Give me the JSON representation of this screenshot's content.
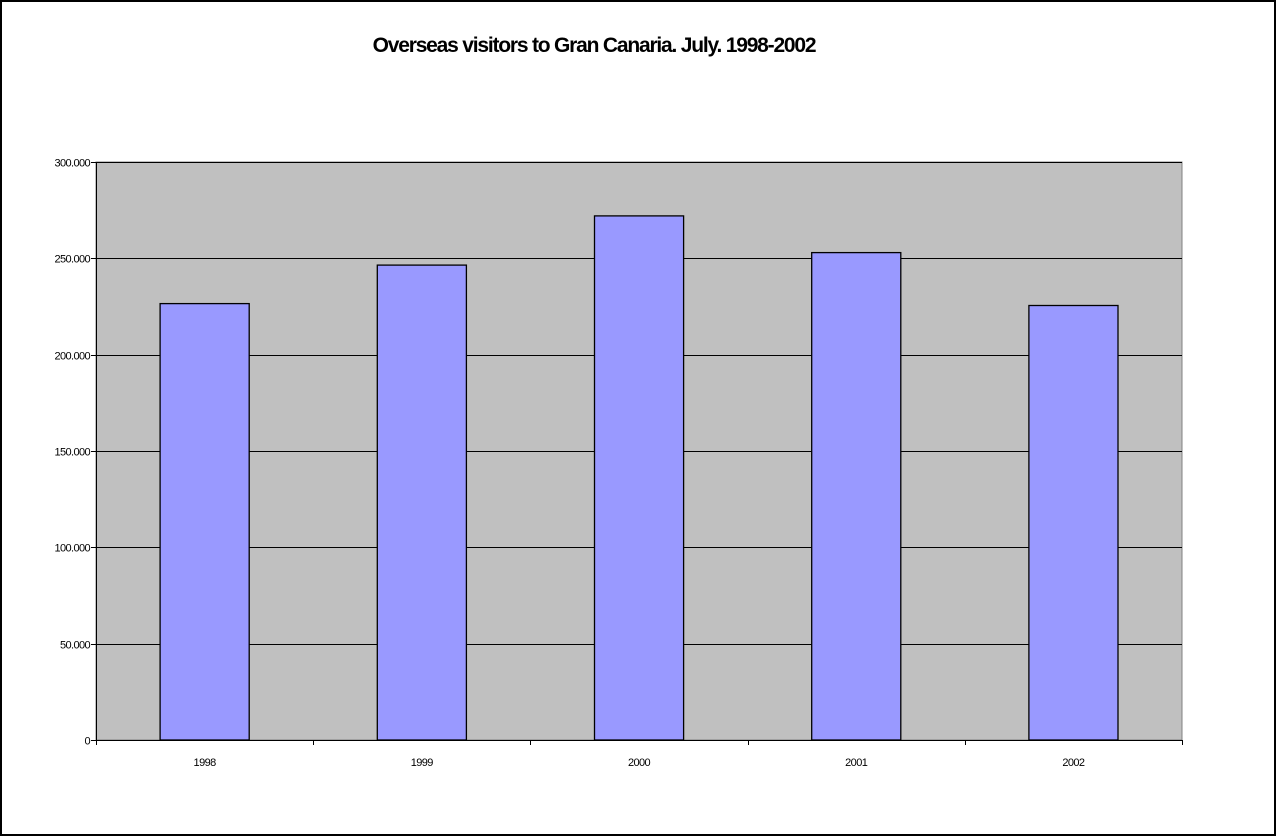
{
  "chart_data": {
    "type": "bar",
    "title": "Overseas visitors to Gran Canaria. July. 1998-2002",
    "xlabel": "",
    "ylabel": "",
    "categories": [
      "1998",
      "1999",
      "2000",
      "2001",
      "2002"
    ],
    "values": [
      226500,
      246500,
      272000,
      253000,
      225500
    ],
    "ylim": [
      0,
      300000
    ],
    "yticks": [
      0,
      50000,
      100000,
      150000,
      200000,
      250000,
      300000
    ],
    "ytick_labels": [
      "0",
      "50.000",
      "100.000",
      "150.000",
      "200.000",
      "250.000",
      "300.000"
    ],
    "grid": true,
    "legend": "none",
    "colors": {
      "plot_background": "#c0c0c0",
      "bar_fill": "#9999ff",
      "bar_stroke": "#000000",
      "gridline": "#000000"
    }
  }
}
